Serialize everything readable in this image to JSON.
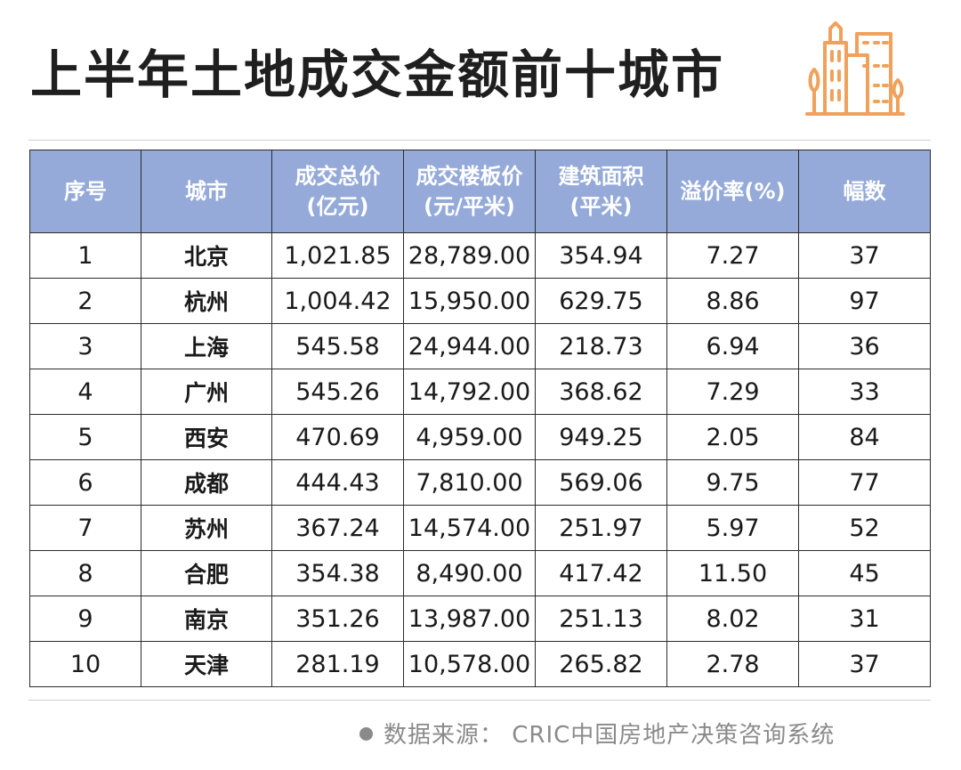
{
  "title": "上半年土地成交金额前十城市",
  "colors": {
    "header_bg": "#95aad9",
    "accent_orange": "#f0a15c",
    "grid_line": "#2b2b2b"
  },
  "table": {
    "headers": [
      {
        "line1": "序号",
        "line2": ""
      },
      {
        "line1": "城市",
        "line2": ""
      },
      {
        "line1": "成交总价",
        "line2": "(亿元)"
      },
      {
        "line1": "成交楼板价",
        "line2": "(元/平米)"
      },
      {
        "line1": "建筑面积",
        "line2": "(平米)"
      },
      {
        "line1": "溢价率(%)",
        "line2": ""
      },
      {
        "line1": "幅数",
        "line2": ""
      }
    ],
    "rows": [
      [
        "1",
        "北京",
        "1,021.85",
        "28,789.00",
        "354.94",
        "7.27",
        "37"
      ],
      [
        "2",
        "杭州",
        "1,004.42",
        "15,950.00",
        "629.75",
        "8.86",
        "97"
      ],
      [
        "3",
        "上海",
        "545.58",
        "24,944.00",
        "218.73",
        "6.94",
        "36"
      ],
      [
        "4",
        "广州",
        "545.26",
        "14,792.00",
        "368.62",
        "7.29",
        "33"
      ],
      [
        "5",
        "西安",
        "470.69",
        "4,959.00",
        "949.25",
        "2.05",
        "84"
      ],
      [
        "6",
        "成都",
        "444.43",
        "7,810.00",
        "569.06",
        "9.75",
        "77"
      ],
      [
        "7",
        "苏州",
        "367.24",
        "14,574.00",
        "251.97",
        "5.97",
        "52"
      ],
      [
        "8",
        "合肥",
        "354.38",
        "8,490.00",
        "417.42",
        "11.50",
        "45"
      ],
      [
        "9",
        "南京",
        "351.26",
        "13,987.00",
        "251.13",
        "8.02",
        "31"
      ],
      [
        "10",
        "天津",
        "281.19",
        "10,578.00",
        "265.82",
        "2.78",
        "37"
      ]
    ]
  },
  "source": "数据来源：  CRIC中国房地产决策咨询系统",
  "icons": {
    "header_illustration": "buildings-icon",
    "source_bullet": "bullet-dot-icon"
  }
}
